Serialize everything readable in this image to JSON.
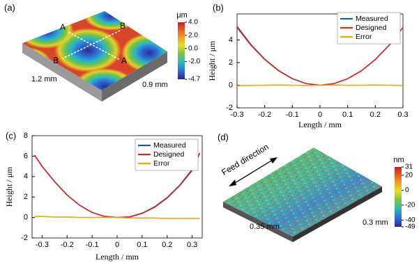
{
  "panel_a": {
    "label": "(a)",
    "points": [
      "A",
      "B",
      "B",
      "A"
    ],
    "dims": [
      "1.2 mm",
      "0.9 mm"
    ],
    "colorbar": {
      "unit": "μm",
      "clim": [
        -4.7,
        4.0
      ],
      "ticks": [
        {
          "value": 4.0,
          "label": "4.0"
        },
        {
          "value": 2.0,
          "label": "2.0"
        },
        {
          "value": 0,
          "label": "0.0"
        },
        {
          "value": -2.0,
          "label": "-2.0"
        },
        {
          "value": -4.7,
          "label": "-4.7"
        }
      ]
    }
  },
  "panel_d": {
    "label": "(d)",
    "annotation": "Feed direction",
    "dims": [
      "0.35 mm",
      "0.3 mm"
    ],
    "colorbar": {
      "unit": "nm",
      "clim": [
        -49,
        31
      ],
      "ticks": [
        31,
        20,
        0,
        -20,
        -40,
        -49
      ]
    }
  },
  "chart_data": [
    {
      "type": "line",
      "label": "(b)",
      "xlabel": "Length / mm",
      "ylabel": "Height / μm",
      "legend": "upper right",
      "x": [
        -0.3,
        -0.25,
        -0.2,
        -0.15,
        -0.1,
        -0.05,
        0,
        0.05,
        0.1,
        0.15,
        0.2,
        0.25,
        0.3
      ],
      "xlim": [
        -0.3,
        0.3
      ],
      "xticks": [
        -0.3,
        -0.2,
        -0.1,
        0,
        0.1,
        0.2,
        0.3
      ],
      "ylim": [
        -2,
        6.3
      ],
      "yticks": [
        -2,
        0,
        2,
        4
      ],
      "series": [
        {
          "name": "Measured",
          "color": "#1f5aa6",
          "values": [
            5.2,
            3.6,
            2.3,
            1.3,
            0.58,
            0.14,
            0.0,
            0.14,
            0.57,
            1.27,
            2.26,
            3.53,
            5.1
          ]
        },
        {
          "name": "Designed",
          "color": "#d62728",
          "values": [
            5.1,
            3.54,
            2.27,
            1.28,
            0.57,
            0.14,
            0.0,
            0.14,
            0.57,
            1.28,
            2.27,
            3.54,
            5.1
          ]
        },
        {
          "name": "Error",
          "color": "#f0a30a",
          "values": [
            -0.05,
            -0.02,
            0.0,
            0.02,
            0.0,
            -0.03,
            0.0,
            0.02,
            -0.01,
            0.0,
            0.02,
            0.0,
            -0.03
          ]
        }
      ]
    },
    {
      "type": "line",
      "label": "(c)",
      "xlabel": "Length / mm",
      "ylabel": "Height / μm",
      "legend": "upper right",
      "x": [
        -0.33,
        -0.3,
        -0.25,
        -0.2,
        -0.15,
        -0.1,
        -0.05,
        0,
        0.05,
        0.1,
        0.15,
        0.2,
        0.25,
        0.3,
        0.33
      ],
      "xlim": [
        -0.34,
        0.34
      ],
      "xticks": [
        -0.3,
        -0.2,
        -0.1,
        0,
        0.1,
        0.2,
        0.3
      ],
      "ylim": [
        -2,
        8
      ],
      "yticks": [
        -2,
        0,
        2,
        4,
        6,
        8
      ],
      "series": [
        {
          "name": "Measured",
          "color": "#1f5aa6",
          "values": [
            6.1,
            5.0,
            3.5,
            2.2,
            1.2,
            0.5,
            0.1,
            0.0,
            0.06,
            0.42,
            1.05,
            1.95,
            3.15,
            4.7,
            6.3
          ]
        },
        {
          "name": "Designed",
          "color": "#d62728",
          "values": [
            6.1,
            5.0,
            3.5,
            2.2,
            1.2,
            0.5,
            0.1,
            0.0,
            0.05,
            0.4,
            1.0,
            1.9,
            3.1,
            4.6,
            6.3
          ]
        },
        {
          "name": "Error",
          "color": "#f0a30a",
          "values": [
            0.1,
            0.1,
            0.05,
            0.05,
            0.0,
            0.0,
            0.0,
            0.0,
            -0.05,
            -0.05,
            -0.05,
            -0.1,
            -0.1,
            -0.1,
            -0.1
          ]
        }
      ]
    }
  ]
}
